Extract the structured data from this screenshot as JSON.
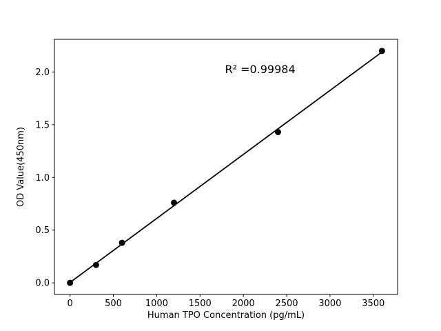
{
  "figure": {
    "background": "#ffffff"
  },
  "chart_data": {
    "type": "scatter",
    "title": "",
    "xlabel": "Human TPO Concentration (pg/mL)",
    "ylabel": "OD Value(450nm)",
    "x": [
      0,
      300,
      600,
      1200,
      2400,
      3600
    ],
    "y": [
      0.0,
      0.17,
      0.38,
      0.76,
      1.43,
      2.2
    ],
    "fit_line": true,
    "annotation": {
      "text": "R² =0.99984",
      "x": 2194,
      "y": 2.03
    },
    "xlim": [
      -180,
      3780
    ],
    "ylim": [
      -0.11,
      2.31
    ],
    "xticks": [
      0,
      500,
      1000,
      1500,
      2000,
      2500,
      3000,
      3500
    ],
    "xtick_labels": [
      "0",
      "500",
      "1000",
      "1500",
      "2000",
      "2500",
      "3000",
      "3500"
    ],
    "yticks": [
      0.0,
      0.5,
      1.0,
      1.5,
      2.0
    ],
    "ytick_labels": [
      "0.0",
      "0.5",
      "1.0",
      "1.5",
      "2.0"
    ],
    "grid": false,
    "legend": null,
    "colors": {
      "line": "#000000",
      "marker": "#000000",
      "axis": "#000000",
      "text": "#000000",
      "background": "#ffffff"
    }
  }
}
